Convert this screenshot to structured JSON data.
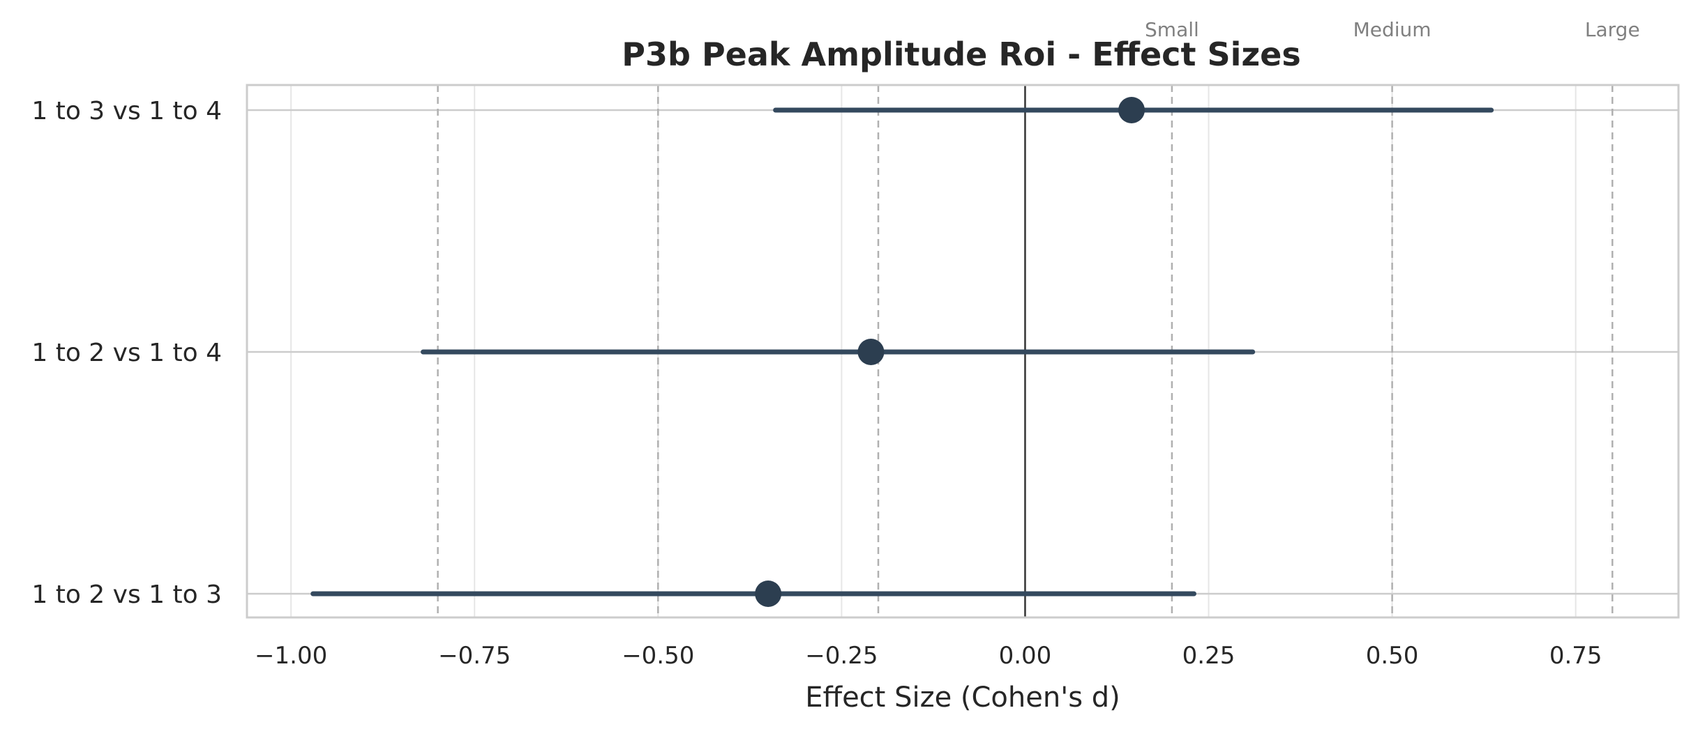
{
  "chart_data": {
    "type": "scatter",
    "subtype": "forest-plot",
    "title": "P3b Peak Amplitude Roi - Effect Sizes",
    "xlabel": "Effect Size (Cohen's d)",
    "ylabel": "",
    "xlim": [
      -1.06,
      0.89
    ],
    "x_ticks": [
      -1.0,
      -0.75,
      -0.5,
      -0.25,
      0.0,
      0.25,
      0.5,
      0.75
    ],
    "x_tick_labels": [
      "−1.00",
      "−0.75",
      "−0.50",
      "−0.25",
      "0.00",
      "0.25",
      "0.50",
      "0.75"
    ],
    "categories": [
      "1 to 3 vs 1 to 4",
      "1 to 2 vs 1 to 4",
      "1 to 2 vs 1 to 3"
    ],
    "estimates": [
      0.145,
      -0.21,
      -0.35
    ],
    "ci_lower": [
      -0.34,
      -0.82,
      -0.97
    ],
    "ci_upper": [
      0.635,
      0.31,
      0.23
    ],
    "zero_line": 0.0,
    "reference_lines": [
      {
        "value": -0.8,
        "label": ""
      },
      {
        "value": -0.5,
        "label": ""
      },
      {
        "value": -0.2,
        "label": ""
      },
      {
        "value": 0.2,
        "label": "Small"
      },
      {
        "value": 0.5,
        "label": "Medium"
      },
      {
        "value": 0.8,
        "label": "Large"
      }
    ],
    "grid": true,
    "colors": {
      "marker": "#2c3e50",
      "line": "#34495e",
      "grid": "#e6e6e6",
      "category_grid": "#cccccc",
      "reference": "#b0b0b0",
      "zero": "#333333",
      "spine": "#cccccc",
      "text": "#262626",
      "reference_label": "#808080"
    }
  }
}
